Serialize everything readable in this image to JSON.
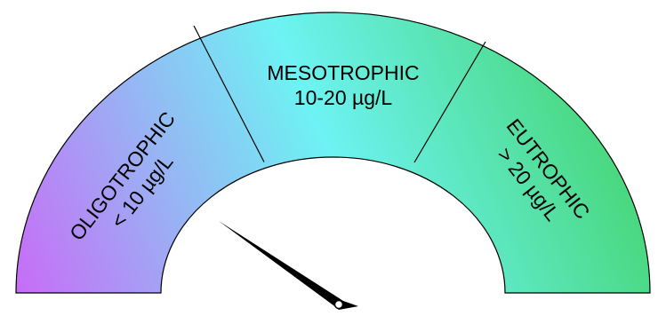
{
  "gauge": {
    "segments": [
      {
        "name": "oligotrophic",
        "title": "OLIGOTROPHIC",
        "range": "< 10 µg/L"
      },
      {
        "name": "mesotrophic",
        "title": "MESOTROPHIC",
        "range": "10-20 µg/L"
      },
      {
        "name": "eutrophic",
        "title": "EUTROPHIC",
        "range": "> 20 µg/L"
      }
    ],
    "colors": {
      "band_left": "#c86cf6",
      "band_middle": "#6df3f3",
      "band_right": "#3ecf5a",
      "outline": "#000000",
      "needle": "#000000",
      "needle_pivot": "#ffffff"
    },
    "needle_reading": 0.21
  }
}
